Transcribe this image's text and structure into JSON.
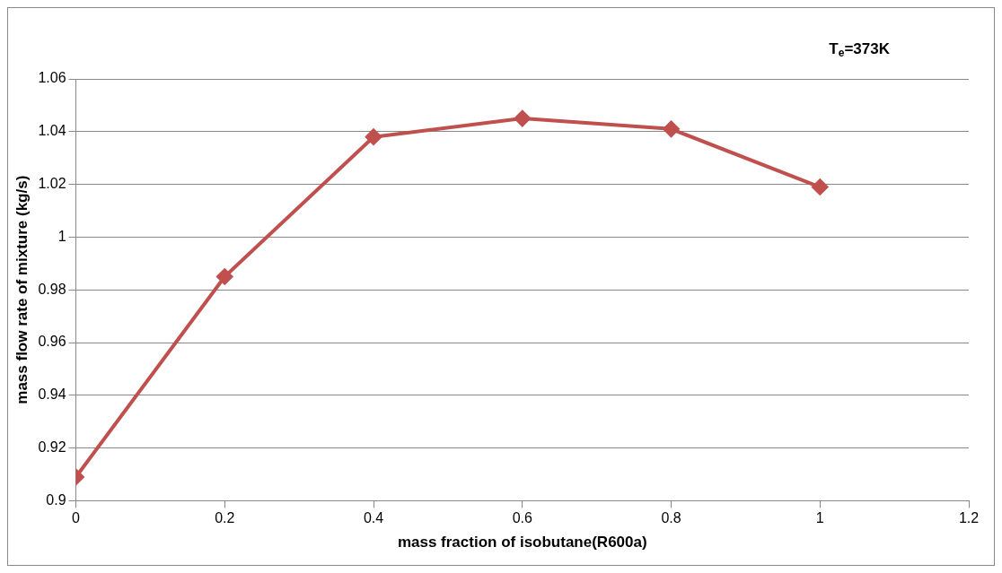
{
  "chart_data": {
    "type": "line",
    "xlabel": "mass fraction of isobutane(R600a)",
    "ylabel": "mass flow rate of mixture (kg/s)",
    "annotations": [
      "T$_{e}$=373K"
    ],
    "x": [
      0,
      0.2,
      0.4,
      0.6,
      0.8,
      1
    ],
    "series": [
      {
        "color": "#c0504d",
        "values": [
          0.909,
          0.985,
          1.038,
          1.045,
          1.041,
          1.019
        ]
      }
    ],
    "xlim": [
      0,
      1.2
    ],
    "xticks": [
      0,
      0.2,
      0.4,
      0.6,
      0.8,
      1,
      1.2
    ],
    "ylim": [
      0.9,
      1.06
    ],
    "yticks": [
      0.9,
      0.92,
      0.94,
      0.96,
      0.98,
      1,
      1.02,
      1.04,
      1.06
    ],
    "grid": "y",
    "legend": false,
    "marker": "diamond",
    "line_style": "solid"
  }
}
